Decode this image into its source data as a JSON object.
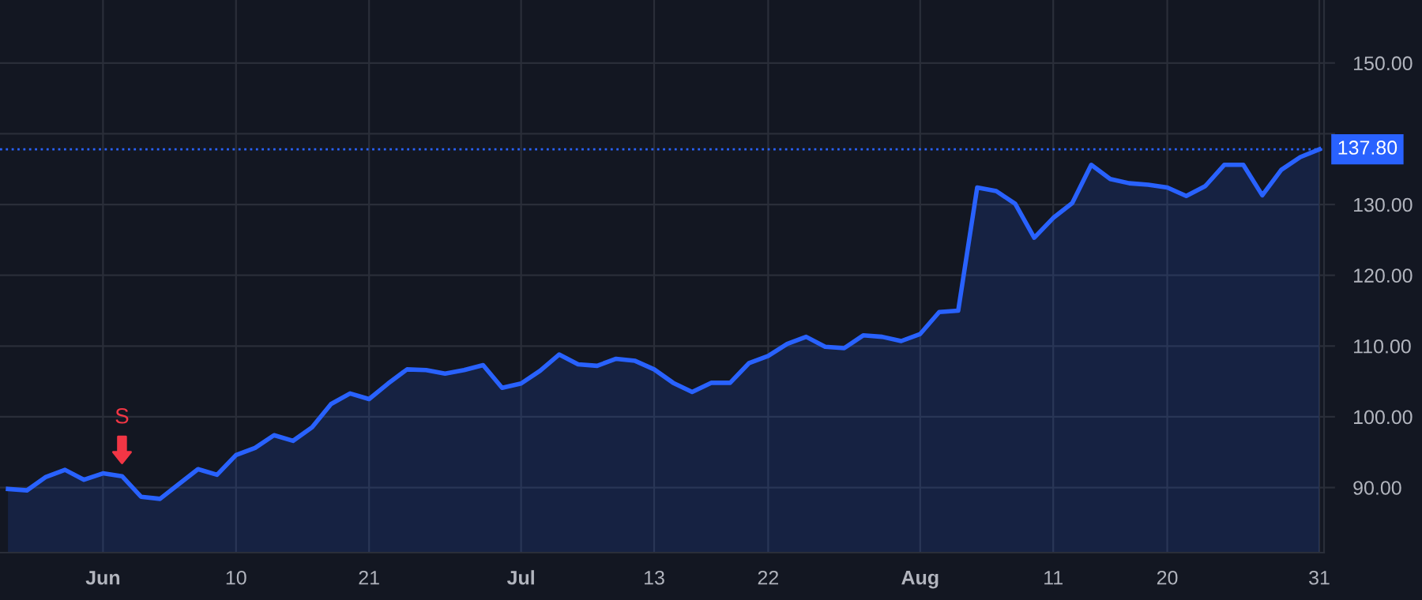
{
  "chart_data": {
    "type": "area",
    "categories": [
      null,
      null,
      null,
      null,
      null,
      "Jun",
      null,
      null,
      null,
      null,
      null,
      null,
      "10",
      null,
      null,
      null,
      null,
      null,
      null,
      "21",
      null,
      null,
      null,
      null,
      null,
      null,
      null,
      "Jul",
      null,
      null,
      null,
      null,
      null,
      null,
      "13",
      null,
      null,
      null,
      null,
      null,
      "22",
      null,
      null,
      null,
      null,
      null,
      null,
      null,
      "Aug",
      null,
      null,
      null,
      null,
      null,
      null,
      "11",
      null,
      null,
      null,
      null,
      null,
      "20",
      null,
      null,
      null,
      null,
      null,
      null,
      null,
      "31"
    ],
    "series": [
      {
        "color": "#2962ff",
        "values": [
          89.8,
          89.6,
          91.5,
          92.5,
          91.1,
          92.0,
          91.6,
          88.7,
          88.4,
          90.5,
          92.6,
          91.8,
          94.6,
          95.6,
          97.4,
          96.6,
          98.5,
          101.8,
          103.3,
          102.5,
          104.7,
          106.7,
          106.6,
          106.1,
          106.6,
          107.3,
          104.1,
          104.7,
          106.5,
          108.8,
          107.4,
          107.2,
          108.2,
          107.9,
          106.7,
          104.8,
          103.5,
          104.8,
          104.8,
          107.6,
          108.6,
          110.3,
          111.3,
          109.9,
          109.7,
          111.5,
          111.3,
          110.7,
          111.7,
          114.8,
          115.0,
          132.4,
          131.9,
          130.1,
          125.3,
          128.1,
          130.2,
          135.6,
          133.6,
          133.0,
          132.8,
          132.4,
          131.2,
          132.6,
          135.6,
          135.6,
          131.3,
          134.9,
          136.7,
          137.8
        ]
      }
    ],
    "ylim": [
      80.8,
      158.9
    ],
    "yticks": [
      {
        "value": 90,
        "label": "90.00"
      },
      {
        "value": 100,
        "label": "100.00"
      },
      {
        "value": 110,
        "label": "110.00"
      },
      {
        "value": 120,
        "label": "120.00"
      },
      {
        "value": 130,
        "label": "130.00"
      },
      {
        "value": 140,
        "label": null
      },
      {
        "value": 150,
        "label": "150.00"
      }
    ],
    "grid": true,
    "ref_lines": [
      {
        "axis": "y",
        "value": 137.8,
        "label": "137.80",
        "color": "#2962ff",
        "line_style": "dotted"
      }
    ],
    "annotations": [
      {
        "text": "S",
        "y": 91.6
      }
    ]
  }
}
